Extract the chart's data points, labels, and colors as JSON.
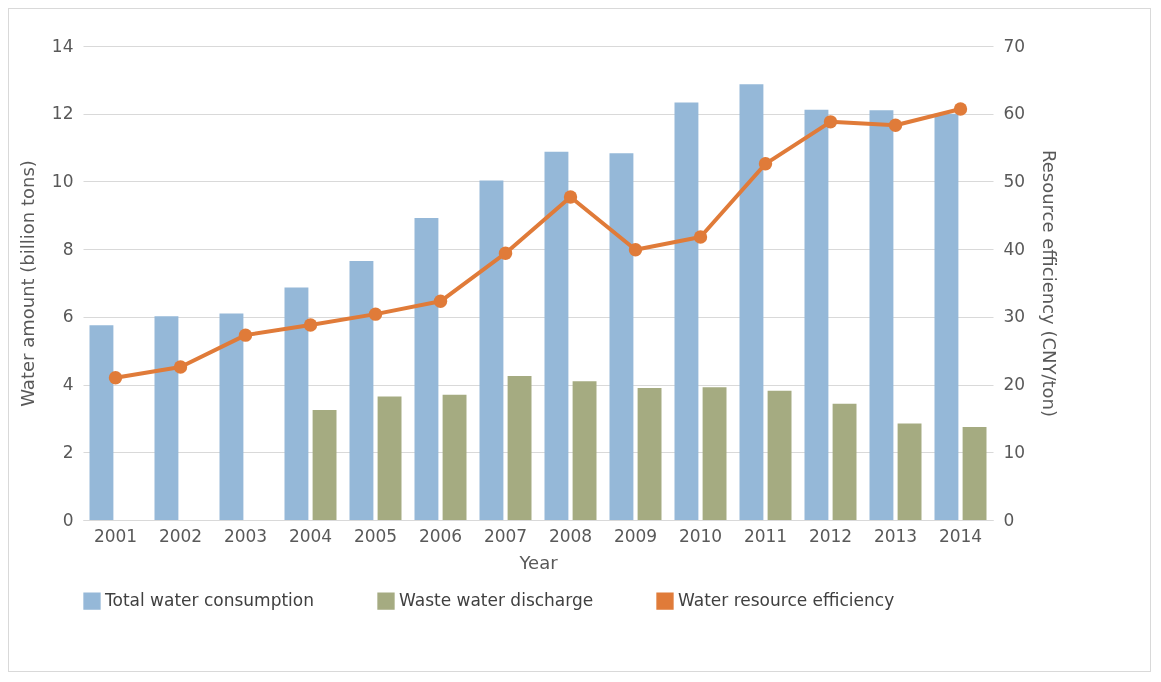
{
  "chart_data": {
    "type": "bar",
    "xlabel": "Year",
    "ylabel": "Water amount (billion tons)",
    "y2label": "Resource efficiency (CNY/ton)",
    "categories": [
      "2001",
      "2002",
      "2003",
      "2004",
      "2005",
      "2006",
      "2007",
      "2008",
      "2009",
      "2010",
      "2011",
      "2012",
      "2013",
      "2014"
    ],
    "series": [
      {
        "name": "Total water consumption",
        "color": "#95b8d8",
        "values": [
          5.75,
          6.02,
          6.1,
          6.87,
          7.65,
          8.92,
          10.03,
          10.88,
          10.83,
          12.33,
          12.87,
          12.12,
          12.1,
          12.0
        ]
      },
      {
        "name": "Waste water discharge",
        "color": "#a5ab81",
        "values": [
          null,
          null,
          null,
          3.25,
          3.65,
          3.7,
          4.25,
          4.1,
          3.9,
          3.92,
          3.82,
          3.43,
          2.85,
          2.75
        ]
      },
      {
        "name": "Water resource efficiency",
        "type": "line",
        "axis": "y2",
        "color": "#e07b39",
        "values": [
          21.0,
          22.6,
          27.3,
          28.8,
          30.4,
          32.3,
          39.4,
          47.7,
          39.9,
          41.8,
          52.6,
          58.8,
          58.3,
          60.7
        ]
      }
    ],
    "ylim": [
      0,
      14
    ],
    "yticks": [
      0,
      2,
      4,
      6,
      8,
      10,
      12,
      14
    ],
    "y2lim": [
      0,
      70
    ],
    "y2ticks": [
      0,
      10,
      20,
      30,
      40,
      50,
      60,
      70
    ],
    "grid": "y",
    "legend": "bottom",
    "marker": "circle"
  }
}
